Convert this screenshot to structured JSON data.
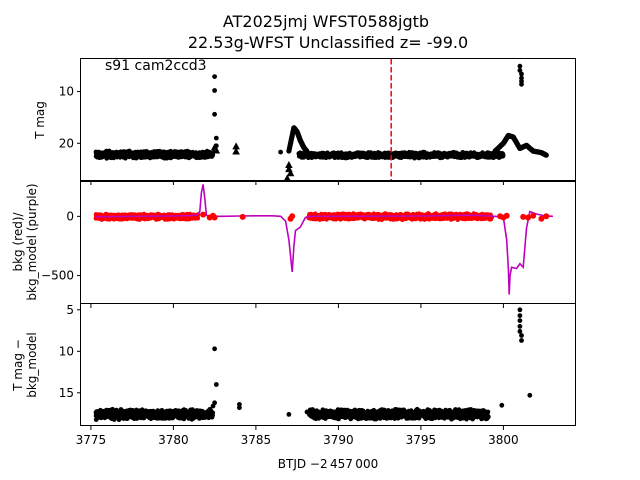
{
  "figure": {
    "title_line1": "AT2025jmj  WFST0588jgtb",
    "title_line2": "22.53g-WFST Unclassified z= -99.0",
    "xlabel": "BTJD −2 457 000",
    "annotation": "s91 cam2ccd3"
  },
  "colors": {
    "points": "#000000",
    "bkg_points": "#ff0000",
    "bkg_model": "#bf00bf",
    "marker_line": "#ff0000"
  },
  "chart_data": [
    {
      "type": "scatter",
      "title": "AT2025jmj  WFST0588jgtb 22.53g-WFST Unclassified z= -99.0",
      "ylabel": "T mag",
      "xlim": [
        3774.4,
        3804.4
      ],
      "ylim": [
        27.3,
        3.7
      ],
      "y_inverted": true,
      "xticks": [
        3775,
        3780,
        3785,
        3790,
        3795,
        3800
      ],
      "xtick_labels": [
        "3775",
        "3780",
        "3785",
        "3790",
        "3795",
        "3800"
      ],
      "yticks": [
        10,
        20
      ],
      "ytick_labels": [
        "10",
        "20"
      ],
      "vline_x": 3793.2,
      "bands": [
        {
          "x0": 3775.3,
          "x1": 3782.4,
          "center": 22.2,
          "half": 0.8
        },
        {
          "x0": 3787.6,
          "x1": 3800.0,
          "center": 22.3,
          "half": 0.6
        }
      ],
      "segments": [
        [
          [
            3787.0,
            21.5
          ],
          [
            3787.3,
            17.0
          ],
          [
            3787.5,
            17.8
          ],
          [
            3787.7,
            19.5
          ],
          [
            3787.9,
            20.8
          ],
          [
            3788.1,
            21.6
          ]
        ],
        [
          [
            3799.5,
            21.5
          ],
          [
            3800.0,
            20.0
          ],
          [
            3800.3,
            18.5
          ],
          [
            3800.6,
            18.8
          ],
          [
            3801.0,
            21.0
          ],
          [
            3801.4,
            20.4
          ],
          [
            3801.8,
            21.5
          ],
          [
            3802.3,
            21.8
          ],
          [
            3802.6,
            22.3
          ]
        ]
      ],
      "points": [
        [
          3782.5,
          9.8
        ],
        [
          3782.5,
          7.1
        ],
        [
          3782.5,
          14.4
        ],
        [
          3782.6,
          19.0
        ],
        [
          3782.6,
          20.5
        ],
        [
          3782.5,
          21.3
        ],
        [
          3786.5,
          21.7
        ],
        [
          3788.1,
          22.5
        ],
        [
          3801.0,
          5.1
        ],
        [
          3801.0,
          5.9
        ],
        [
          3801.1,
          6.6
        ],
        [
          3801.1,
          7.4
        ],
        [
          3801.1,
          8.0
        ],
        [
          3801.1,
          8.6
        ]
      ],
      "triangles": [
        [
          3782.6,
          21.4
        ],
        [
          3782.5,
          20.8
        ],
        [
          3782.6,
          30.0
        ],
        [
          3783.8,
          20.6
        ],
        [
          3783.8,
          21.6
        ],
        [
          3787.0,
          24.2
        ],
        [
          3787.0,
          25.0
        ],
        [
          3787.1,
          25.8
        ],
        [
          3786.9,
          26.8
        ],
        [
          3787.0,
          27.7
        ]
      ]
    },
    {
      "type": "line",
      "ylabel": "bkg (red)/\nbkg_model (purple)",
      "xlim": [
        3774.4,
        3804.4
      ],
      "ylim": [
        -740,
        290
      ],
      "yticks": [
        0,
        -500
      ],
      "ytick_labels": [
        "0",
        "−500"
      ],
      "series": [
        {
          "kind": "line",
          "color": "#bf00bf",
          "values": [
            [
              3775.3,
              -3
            ],
            [
              3778.0,
              0
            ],
            [
              3780.0,
              3
            ],
            [
              3781.0,
              6
            ],
            [
              3781.4,
              10
            ],
            [
              3781.6,
              40
            ],
            [
              3781.7,
              200
            ],
            [
              3781.8,
              270
            ],
            [
              3781.9,
              150
            ],
            [
              3782.0,
              10
            ],
            [
              3782.2,
              0
            ],
            [
              3782.4,
              0
            ],
            [
              3782.6,
              0
            ],
            [
              3783.0,
              0
            ],
            [
              3784.0,
              3
            ],
            [
              3785.0,
              5
            ],
            [
              3786.0,
              5
            ],
            [
              3786.5,
              0
            ],
            [
              3786.8,
              -40
            ],
            [
              3787.0,
              -200
            ],
            [
              3787.2,
              -470
            ],
            [
              3787.3,
              -250
            ],
            [
              3787.4,
              -120
            ],
            [
              3787.7,
              -90
            ],
            [
              3788.0,
              -10
            ],
            [
              3788.3,
              0
            ],
            [
              3790.0,
              0
            ],
            [
              3795.0,
              3
            ],
            [
              3798.0,
              10
            ],
            [
              3799.0,
              5
            ],
            [
              3799.5,
              0
            ],
            [
              3800.0,
              -10
            ],
            [
              3800.2,
              -200
            ],
            [
              3800.3,
              -450
            ],
            [
              3800.35,
              -660
            ],
            [
              3800.4,
              -500
            ],
            [
              3800.5,
              -430
            ],
            [
              3800.8,
              -440
            ],
            [
              3801.0,
              -400
            ],
            [
              3801.2,
              -430
            ],
            [
              3801.4,
              -100
            ],
            [
              3801.6,
              40
            ],
            [
              3801.8,
              30
            ],
            [
              3802.0,
              20
            ],
            [
              3802.5,
              5
            ],
            [
              3803.0,
              0
            ]
          ]
        }
      ],
      "bands": [
        {
          "x0": 3775.3,
          "x1": 3781.5,
          "center": -4,
          "half": 25,
          "color": "#ff0000"
        },
        {
          "x0": 3788.2,
          "x1": 3799.3,
          "center": -2,
          "half": 28,
          "color": "#ff0000"
        }
      ],
      "points": [
        [
          3781.8,
          15
        ],
        [
          3782.2,
          -10
        ],
        [
          3782.4,
          5
        ],
        [
          3782.5,
          -10
        ],
        [
          3784.2,
          -5
        ],
        [
          3787.1,
          -20
        ],
        [
          3787.2,
          0
        ],
        [
          3799.8,
          0
        ],
        [
          3800.0,
          -10
        ],
        [
          3800.2,
          5
        ],
        [
          3801.2,
          -5
        ],
        [
          3801.5,
          -10
        ],
        [
          3801.8,
          5
        ],
        [
          3802.3,
          -20
        ],
        [
          3802.6,
          0
        ]
      ]
    },
    {
      "type": "scatter",
      "ylabel": "T mag −\nbkg_model",
      "xlim": [
        3774.4,
        3804.4
      ],
      "ylim": [
        19.0,
        4.3
      ],
      "y_inverted": true,
      "yticks": [
        5,
        10,
        15
      ],
      "ytick_labels": [
        "5",
        "10",
        "15"
      ],
      "bands": [
        {
          "x0": 3775.3,
          "x1": 3782.4,
          "center": 17.6,
          "half": 0.65
        },
        {
          "x0": 3788.2,
          "x1": 3799.1,
          "center": 17.6,
          "half": 0.65
        }
      ],
      "points": [
        [
          3782.5,
          9.7
        ],
        [
          3782.6,
          14.0
        ],
        [
          3782.5,
          16.2
        ],
        [
          3782.4,
          16.6
        ],
        [
          3782.2,
          17.0
        ],
        [
          3784.0,
          16.4
        ],
        [
          3784.0,
          16.8
        ],
        [
          3787.0,
          17.6
        ],
        [
          3788.1,
          17.3
        ],
        [
          3799.9,
          16.5
        ],
        [
          3801.0,
          5.0
        ],
        [
          3801.0,
          5.7
        ],
        [
          3801.0,
          6.3
        ],
        [
          3801.0,
          7.0
        ],
        [
          3801.0,
          7.6
        ],
        [
          3801.1,
          8.1
        ],
        [
          3801.1,
          8.7
        ],
        [
          3801.6,
          15.3
        ]
      ]
    }
  ]
}
